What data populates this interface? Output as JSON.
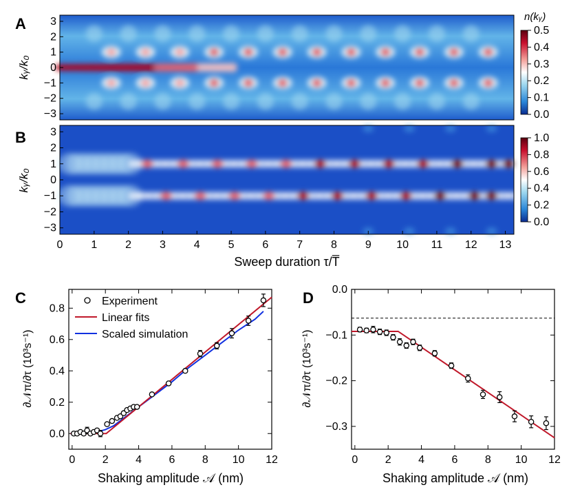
{
  "colors": {
    "hot": "#b0001a",
    "cold": "#0a3fb0",
    "mid": "#ffffff",
    "fit": "#c0182a",
    "sim": "#1030e0"
  },
  "panels": {
    "A": {
      "letter": "A",
      "ylabel": "kᵧ/k₀",
      "colorbar_title": "n(kᵧ)",
      "colorbar_ticks": [
        "0.5",
        "0.4",
        "0.3",
        "0.2",
        "0.1",
        "0.0"
      ]
    },
    "B": {
      "letter": "B",
      "ylabel": "kᵧ/k₀",
      "colorbar_ticks": [
        "1.0",
        "0.8",
        "0.6",
        "0.4",
        "0.2",
        "0.0"
      ]
    },
    "C": {
      "letter": "C",
      "xlabel": "Shaking amplitude 𝒜 (nm)",
      "ylabel": "∂𝒩π/∂τ (10³s⁻¹)"
    },
    "D": {
      "letter": "D",
      "xlabel": "Shaking amplitude 𝒜 (nm)",
      "ylabel": "∂𝒩π/∂τ (10³s⁻¹)"
    }
  },
  "heatmap_axis": {
    "xlabel": "Sweep duration τ/T̅",
    "xticks": [
      "0",
      "1",
      "2",
      "3",
      "4",
      "5",
      "6",
      "7",
      "8",
      "9",
      "10",
      "11",
      "12",
      "13"
    ],
    "yticks": [
      "3",
      "2",
      "1",
      "0",
      "−1",
      "−2",
      "−3"
    ]
  },
  "legend": {
    "experiment": "Experiment",
    "fits": "Linear fits",
    "simulation": "Scaled simulation"
  },
  "chart_data": [
    {
      "panel": "C",
      "type": "scatter",
      "xlim": [
        -0.2,
        12
      ],
      "ylim": [
        -0.1,
        0.92
      ],
      "xticks": [
        0,
        2,
        4,
        6,
        8,
        10,
        12
      ],
      "yticks": [
        0.0,
        0.2,
        0.4,
        0.6,
        0.8
      ],
      "ytick_labels": [
        "0.0",
        "0.2",
        "0.4",
        "0.6",
        "0.8"
      ],
      "experiment": {
        "x": [
          0.1,
          0.3,
          0.5,
          0.7,
          0.9,
          1.1,
          1.3,
          1.5,
          1.7,
          2.1,
          2.4,
          2.7,
          2.9,
          3.1,
          3.3,
          3.5,
          3.7,
          3.9,
          4.8,
          5.8,
          6.8,
          7.7,
          8.7,
          9.6,
          10.6,
          11.5
        ],
        "y": [
          0.0,
          0.0,
          0.01,
          0.0,
          0.02,
          0.0,
          0.01,
          0.02,
          0.0,
          0.06,
          0.08,
          0.1,
          0.11,
          0.13,
          0.15,
          0.16,
          0.17,
          0.17,
          0.25,
          0.32,
          0.4,
          0.51,
          0.56,
          0.64,
          0.72,
          0.85
        ],
        "err": [
          0.01,
          0.01,
          0.01,
          0.01,
          0.02,
          0.01,
          0.01,
          0.01,
          0.02,
          0.01,
          0.01,
          0.01,
          0.01,
          0.01,
          0.01,
          0.01,
          0.01,
          0.01,
          0.01,
          0.01,
          0.01,
          0.02,
          0.02,
          0.03,
          0.03,
          0.04
        ]
      },
      "linear_fit": {
        "x": [
          -0.1,
          2.05,
          12
        ],
        "y": [
          0.0,
          0.0,
          0.87
        ]
      },
      "simulation": {
        "x": [
          -0.1,
          0.5,
          1.0,
          1.5,
          2.0,
          2.5,
          3.0,
          3.5,
          4.0,
          5,
          6,
          7,
          8,
          9,
          10,
          11,
          11.5
        ],
        "y": [
          0.0,
          0.0,
          0.005,
          0.01,
          0.025,
          0.05,
          0.09,
          0.13,
          0.17,
          0.25,
          0.33,
          0.42,
          0.5,
          0.58,
          0.66,
          0.73,
          0.78
        ]
      }
    },
    {
      "panel": "D",
      "type": "scatter",
      "xlim": [
        -0.2,
        12
      ],
      "ylim": [
        -0.35,
        0.0
      ],
      "xticks": [
        0,
        2,
        4,
        6,
        8,
        10,
        12
      ],
      "yticks": [
        0.0,
        -0.1,
        -0.2,
        -0.3
      ],
      "ytick_labels": [
        "0.0",
        "−0.1",
        "−0.2",
        "−0.3"
      ],
      "experiment": {
        "x": [
          0.3,
          0.7,
          1.1,
          1.5,
          1.9,
          2.3,
          2.7,
          3.1,
          3.5,
          3.9,
          4.8,
          5.8,
          6.8,
          7.7,
          8.7,
          9.6,
          10.6,
          11.5
        ],
        "y": [
          -0.088,
          -0.09,
          -0.088,
          -0.093,
          -0.095,
          -0.105,
          -0.115,
          -0.123,
          -0.115,
          -0.128,
          -0.14,
          -0.167,
          -0.195,
          -0.23,
          -0.236,
          -0.278,
          -0.29,
          -0.293
        ],
        "err": [
          0.005,
          0.005,
          0.007,
          0.006,
          0.006,
          0.006,
          0.007,
          0.006,
          0.006,
          0.006,
          0.006,
          0.006,
          0.008,
          0.009,
          0.012,
          0.012,
          0.013,
          0.014
        ]
      },
      "linear_fit": {
        "x": [
          -0.2,
          2.6,
          12
        ],
        "y": [
          -0.092,
          -0.092,
          -0.325
        ]
      },
      "reference_dashed_y": -0.063
    }
  ]
}
